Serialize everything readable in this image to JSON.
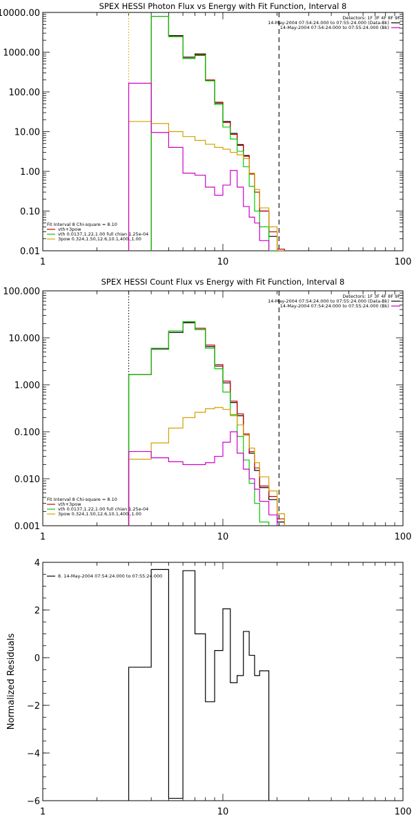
{
  "chart_data": [
    {
      "type": "line",
      "title": "SPEX HESSI Photon Flux vs Energy with Fit Function, Interval 8",
      "xscale": "log",
      "yscale": "log",
      "xlim": [
        1,
        100
      ],
      "ylim": [
        0.01,
        10000
      ],
      "xticks": [
        {
          "v": 1,
          "label": "1"
        },
        {
          "v": 10,
          "label": "10"
        },
        {
          "v": 100,
          "label": "100"
        }
      ],
      "yticks": [
        {
          "v": 0.01,
          "label": "0.01"
        },
        {
          "v": 0.1,
          "label": "0.10"
        },
        {
          "v": 1,
          "label": "1.00"
        },
        {
          "v": 10,
          "label": "10.00"
        },
        {
          "v": 100,
          "label": "100.00"
        },
        {
          "v": 1000,
          "label": "1000.00"
        },
        {
          "v": 10000,
          "label": "10000.00"
        }
      ],
      "vlines": [
        {
          "x": 3,
          "style": "dotted",
          "color": "#d4a000"
        },
        {
          "x": 20.5,
          "style": "dashed",
          "color": "#000000"
        }
      ],
      "legend_right": {
        "detectors": "Detectors: 1F 3F 4F 8F 9F",
        "lines": [
          {
            "text": "14-May-2004 07:54:24.000 to 07:55:24.000 (Data-Bk)",
            "color": "#000000"
          },
          {
            "text": "14-May-2004 07:54:24.000 to 07:55:24.000 (Bk)",
            "color": "#cc00cc"
          }
        ]
      },
      "legend_left": {
        "header": "Fit Interval 8   Chi-square = 8.10",
        "lines": [
          {
            "text": "vth+3pow",
            "color": "#cc0000"
          },
          {
            "text": "vth 0.0137,1.22,1.00  full chian 1.25e-04",
            "color": "#00cc00"
          },
          {
            "text": "3pow 0.324,1.50,12.6,10.1,400.,1.00",
            "color": "#d4a000"
          }
        ]
      },
      "edges": [
        3,
        4,
        5,
        6,
        7,
        8,
        9,
        10,
        11,
        12,
        13,
        14,
        15,
        16,
        18,
        20,
        22
      ],
      "series": [
        {
          "name": "Data-Bk",
          "color": "#000000",
          "width": 1.2,
          "values": [
            null,
            8000,
            2600,
            750,
            900,
            195,
            52,
            18,
            9,
            4.7,
            2.5,
            0.9,
            0.3,
            0.1,
            0.023,
            null
          ]
        },
        {
          "name": "vth+3pow",
          "color": "#cc0000",
          "width": 1.2,
          "values": [
            null,
            8000,
            2500,
            700,
            850,
            200,
            55,
            17,
            8.5,
            4.5,
            2.4,
            0.85,
            0.3,
            0.1,
            0.03,
            0.011
          ]
        },
        {
          "name": "vth",
          "color": "#00cc00",
          "width": 1.2,
          "values": [
            null,
            8000,
            2450,
            690,
            820,
            190,
            48,
            13,
            6.5,
            3.2,
            1.3,
            0.42,
            0.1,
            0.04,
            0.01,
            null
          ]
        },
        {
          "name": "3pow",
          "color": "#d4a000",
          "width": 1.2,
          "values": [
            18,
            16,
            10,
            7.5,
            6,
            4.8,
            4,
            3.6,
            3,
            2.6,
            2.1,
            0.9,
            0.35,
            0.12,
            0.04,
            0.01
          ]
        },
        {
          "name": "Bk",
          "color": "#cc00cc",
          "width": 1.2,
          "values": [
            165,
            9.5,
            4,
            0.9,
            0.8,
            0.4,
            0.25,
            0.45,
            1.05,
            0.4,
            0.13,
            0.07,
            0.05,
            0.018,
            null,
            null
          ]
        }
      ]
    },
    {
      "type": "line",
      "title": "SPEX HESSI Count Flux vs Energy with Fit Function, Interval 8",
      "xscale": "log",
      "yscale": "log",
      "xlim": [
        1,
        100
      ],
      "ylim": [
        0.001,
        100
      ],
      "xticks": [
        {
          "v": 1,
          "label": "1"
        },
        {
          "v": 10,
          "label": "10"
        },
        {
          "v": 100,
          "label": "100"
        }
      ],
      "yticks": [
        {
          "v": 0.001,
          "label": "0.001"
        },
        {
          "v": 0.01,
          "label": "0.010"
        },
        {
          "v": 0.1,
          "label": "0.100"
        },
        {
          "v": 1,
          "label": "1.000"
        },
        {
          "v": 10,
          "label": "10.000"
        },
        {
          "v": 100,
          "label": "100.000"
        }
      ],
      "vlines": [
        {
          "x": 3,
          "style": "dotted",
          "color": "#000000"
        },
        {
          "x": 20.5,
          "style": "dashed",
          "color": "#000000"
        }
      ],
      "legend_right": {
        "detectors": "Detectors: 1F 3F 4F 8F 9F",
        "lines": [
          {
            "text": "14-May-2004 07:54:24.000 to 07:55:24.000 (Data-Bk)",
            "color": "#000000"
          },
          {
            "text": "14-May-2004 07:54:24.000 to 07:55:24.000 (Bk)",
            "color": "#cc00cc"
          }
        ]
      },
      "legend_left": {
        "header": "Fit Interval 8   Chi-square = 8.10",
        "lines": [
          {
            "text": "vth+3pow",
            "color": "#cc0000"
          },
          {
            "text": "vth 0.0137,1.22,1.00  full chian 1.25e-04",
            "color": "#00cc00"
          },
          {
            "text": "3pow 0.324,1.50,12.6,10.1,400.,1.00",
            "color": "#d4a000"
          }
        ]
      },
      "edges": [
        3,
        4,
        5,
        6,
        7,
        8,
        9,
        10,
        11,
        12,
        13,
        14,
        15,
        16,
        18,
        20,
        22
      ],
      "series": [
        {
          "name": "Data-Bk",
          "color": "#000000",
          "width": 1.2,
          "values": [
            1.65,
            5.8,
            13,
            21,
            15,
            6.5,
            2.5,
            1.1,
            0.42,
            0.22,
            0.085,
            0.035,
            0.015,
            0.0065,
            0.0036,
            0.0012
          ]
        },
        {
          "name": "vth+3pow",
          "color": "#cc0000",
          "width": 1.2,
          "values": [
            1.65,
            6,
            14,
            22,
            16,
            7,
            2.7,
            1.2,
            0.45,
            0.24,
            0.09,
            0.038,
            0.017,
            0.007,
            0.0042,
            0.0014
          ]
        },
        {
          "name": "vth",
          "color": "#00cc00",
          "width": 1.2,
          "values": [
            1.65,
            6,
            14,
            22,
            15,
            6,
            2.2,
            0.7,
            0.23,
            0.08,
            0.025,
            0.008,
            0.003,
            0.0012,
            null,
            null
          ]
        },
        {
          "name": "3pow",
          "color": "#d4a000",
          "width": 1.2,
          "values": [
            0.026,
            0.058,
            0.12,
            0.2,
            0.26,
            0.31,
            0.33,
            0.3,
            0.22,
            0.14,
            0.085,
            0.045,
            0.022,
            0.011,
            0.0055,
            0.0018
          ]
        },
        {
          "name": "Bk",
          "color": "#cc00cc",
          "width": 1.2,
          "values": [
            0.038,
            0.028,
            0.023,
            0.02,
            0.02,
            0.022,
            0.03,
            0.06,
            0.1,
            0.035,
            0.016,
            0.01,
            0.006,
            0.0033,
            0.0017,
            null
          ]
        }
      ]
    },
    {
      "type": "line",
      "title": "",
      "xscale": "log",
      "yscale": "linear",
      "xlim": [
        1,
        100
      ],
      "ylim": [
        -6,
        4
      ],
      "ylabel": "Normalized Residuals",
      "xticks": [
        {
          "v": 1,
          "label": "1"
        },
        {
          "v": 10,
          "label": "10"
        },
        {
          "v": 100,
          "label": "100"
        }
      ],
      "yticks": [
        {
          "v": -6,
          "label": "−6"
        },
        {
          "v": -4,
          "label": "−4"
        },
        {
          "v": -2,
          "label": "−2"
        },
        {
          "v": 0,
          "label": "0"
        },
        {
          "v": 2,
          "label": "2"
        },
        {
          "v": 4,
          "label": "4"
        }
      ],
      "legend_left": {
        "lines": [
          {
            "text": "8. 14-May-2004 07:54:24.000 to 07:55:24.000",
            "color": "#000000"
          }
        ]
      },
      "edges": [
        3,
        4,
        5,
        6,
        7,
        8,
        9,
        10,
        11,
        12,
        13,
        14,
        15,
        16,
        18,
        20
      ],
      "drop_to": -6,
      "series": [
        {
          "name": "8. 14-May-2004 07:54:24.000 to 07:55:24.000",
          "color": "#000000",
          "width": 1.2,
          "values": [
            -0.4,
            3.7,
            -5.9,
            3.65,
            1.0,
            -1.85,
            0.3,
            2.05,
            -1.05,
            -0.75,
            1.1,
            0.1,
            -0.75,
            -0.55,
            null
          ]
        }
      ]
    }
  ]
}
